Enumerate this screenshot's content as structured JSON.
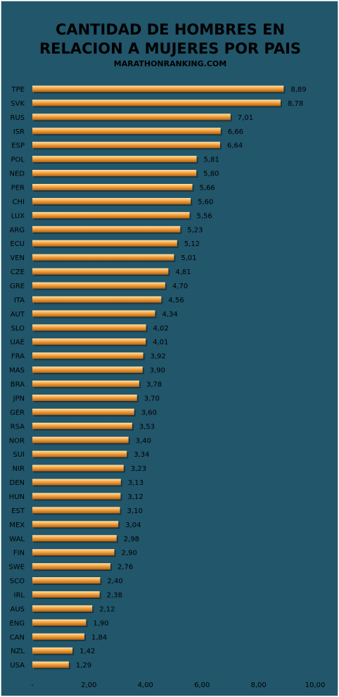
{
  "chart_data": {
    "type": "bar",
    "orientation": "horizontal",
    "title": "CANTIDAD DE HOMBRES EN RELACION A MUJERES POR PAIS",
    "title_lines": [
      "CANTIDAD DE HOMBRES EN",
      "RELACION A MUJERES POR PAIS"
    ],
    "subtitle": "MARATHONRANKING.COM",
    "categories": [
      "TPE",
      "SVK",
      "RUS",
      "ISR",
      "ESP",
      "POL",
      "NED",
      "PER",
      "CHI",
      "LUX",
      "ARG",
      "ECU",
      "VEN",
      "CZE",
      "GRE",
      "ITA",
      "AUT",
      "SLO",
      "UAE",
      "FRA",
      "MAS",
      "BRA",
      "JPN",
      "GER",
      "RSA",
      "NOR",
      "SUI",
      "NIR",
      "DEN",
      "HUN",
      "EST",
      "MEX",
      "WAL",
      "FIN",
      "SWE",
      "SCO",
      "IRL",
      "AUS",
      "ENG",
      "CAN",
      "NZL",
      "USA"
    ],
    "values": [
      8.89,
      8.78,
      7.01,
      6.66,
      6.64,
      5.81,
      5.8,
      5.66,
      5.6,
      5.56,
      5.23,
      5.12,
      5.01,
      4.81,
      4.7,
      4.56,
      4.34,
      4.02,
      4.01,
      3.92,
      3.9,
      3.78,
      3.7,
      3.6,
      3.53,
      3.4,
      3.34,
      3.23,
      3.13,
      3.12,
      3.1,
      3.04,
      2.98,
      2.9,
      2.76,
      2.4,
      2.38,
      2.12,
      1.9,
      1.84,
      1.42,
      1.29
    ],
    "data_labels": [
      "8,89",
      "8,78",
      "7,01",
      "6,66",
      "6,64",
      "5,81",
      "5,80",
      "5,66",
      "5,60",
      "5,56",
      "5,23",
      "5,12",
      "5,01",
      "4,81",
      "4,70",
      "4,56",
      "4,34",
      "4,02",
      "4,01",
      "3,92",
      "3,90",
      "3,78",
      "3,70",
      "3,60",
      "3,53",
      "3,40",
      "3,34",
      "3,23",
      "3,13",
      "3,12",
      "3,10",
      "3,04",
      "2,98",
      "2,90",
      "2,76",
      "2,40",
      "2,38",
      "2,12",
      "1,90",
      "1,84",
      "1,42",
      "1,29"
    ],
    "xlim": [
      0,
      10
    ],
    "x_ticks": [
      0,
      2,
      4,
      6,
      8,
      10
    ],
    "x_tick_labels": [
      "-",
      "2,00",
      "4,00",
      "6,00",
      "8,00",
      "10,00"
    ],
    "grid": false,
    "legend": "none",
    "colors": {
      "background": "#21566B",
      "bar_light": "#FFE3A8",
      "bar_mid": "#F5A442",
      "bar_dark": "#B8620F",
      "text": "#000000"
    }
  }
}
